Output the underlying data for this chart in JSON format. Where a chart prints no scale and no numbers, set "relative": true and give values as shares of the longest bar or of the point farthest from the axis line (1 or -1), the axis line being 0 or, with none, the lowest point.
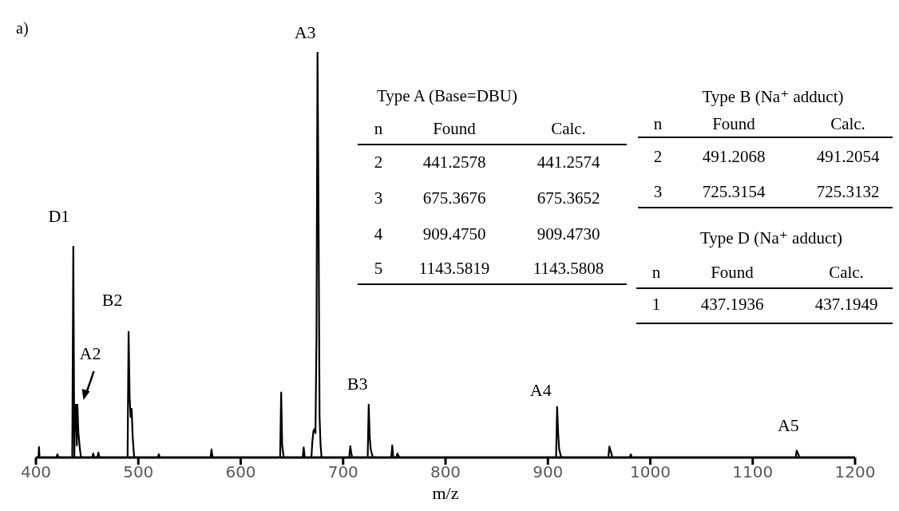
{
  "chart_data": {
    "type": "line",
    "relative": true,
    "xlabel": "m/z",
    "xlim": [
      400,
      1200
    ],
    "xticks": [
      400,
      500,
      600,
      700,
      800,
      900,
      1000,
      1100,
      1200
    ],
    "x": [
      400,
      402.5,
      403,
      403.5,
      420,
      421,
      422,
      435.5,
      436.5,
      437.5,
      438,
      439,
      440,
      440.5,
      441.5,
      443,
      444,
      455,
      456,
      457,
      460,
      461,
      462,
      489.5,
      490.5,
      491.5,
      492.5,
      493.5,
      494.5,
      496,
      519,
      520,
      521,
      570.5,
      571.5,
      572.5,
      638.5,
      639.5,
      640.5,
      642,
      660.5,
      661.5,
      662.5,
      669,
      670,
      671,
      672,
      673,
      674,
      675,
      676,
      677,
      678,
      679,
      706,
      707,
      708,
      709,
      724,
      725,
      726,
      727,
      729,
      747,
      748,
      749,
      752,
      753,
      755,
      908,
      909,
      910,
      911,
      913,
      959,
      960,
      962,
      963,
      980,
      981,
      982,
      1142,
      1143,
      1145,
      1146,
      1200
    ],
    "series": [
      {
        "color": "#000000",
        "values": [
          0,
          0,
          0.026,
          0,
          0,
          0.008,
          0,
          0,
          0.52,
          0,
          0.1,
          0.13,
          0.03,
          0.13,
          0.06,
          0.02,
          0,
          0,
          0.01,
          0,
          0,
          0.012,
          0,
          0,
          0.31,
          0.15,
          0.1,
          0.12,
          0.05,
          0,
          0,
          0.008,
          0,
          0,
          0.02,
          0,
          0,
          0.16,
          0.03,
          0,
          0,
          0.025,
          0,
          0,
          0.04,
          0.065,
          0.07,
          0.06,
          0.3,
          1,
          0.6,
          0.1,
          0.03,
          0,
          0,
          0.028,
          0.01,
          0,
          0,
          0.13,
          0.05,
          0.02,
          0,
          0,
          0.03,
          0,
          0,
          0.01,
          0,
          0,
          0.125,
          0.06,
          0.02,
          0,
          0,
          0.027,
          0.01,
          0,
          0,
          0.008,
          0,
          0,
          0.017,
          0.005,
          0,
          0
        ]
      }
    ],
    "annotations": [
      "a)",
      {
        "text": "A3",
        "x": 675,
        "y": 1
      },
      {
        "text": "D1",
        "x": 437,
        "y": 0.52
      },
      {
        "text": "B2",
        "x": 491,
        "y": 0.31
      },
      {
        "text": "A2",
        "x": 441,
        "y": 0.13
      },
      {
        "text": "B3",
        "x": 725,
        "y": 0.13
      },
      {
        "text": "A4",
        "x": 909,
        "y": 0.125
      },
      {
        "text": "A5",
        "x": 1143,
        "y": 0.017
      },
      "Type A (Base=DBU)",
      "n",
      "Found",
      "Calc.",
      "2",
      "441.2578",
      "441.2574",
      "3",
      "675.3676",
      "675.3652",
      "4",
      "909.4750",
      "909.4730",
      "5",
      "1143.5819",
      "1143.5808",
      "Type B  (Na⁺ adduct)",
      "n",
      "Found",
      "Calc.",
      "2",
      "491.2068",
      "491.2054",
      "3",
      "725.3154",
      "725.3132",
      "Type D  (Na⁺ adduct)",
      "n",
      "Found",
      "Calc.",
      "1",
      "437.1936",
      "437.1949"
    ]
  }
}
